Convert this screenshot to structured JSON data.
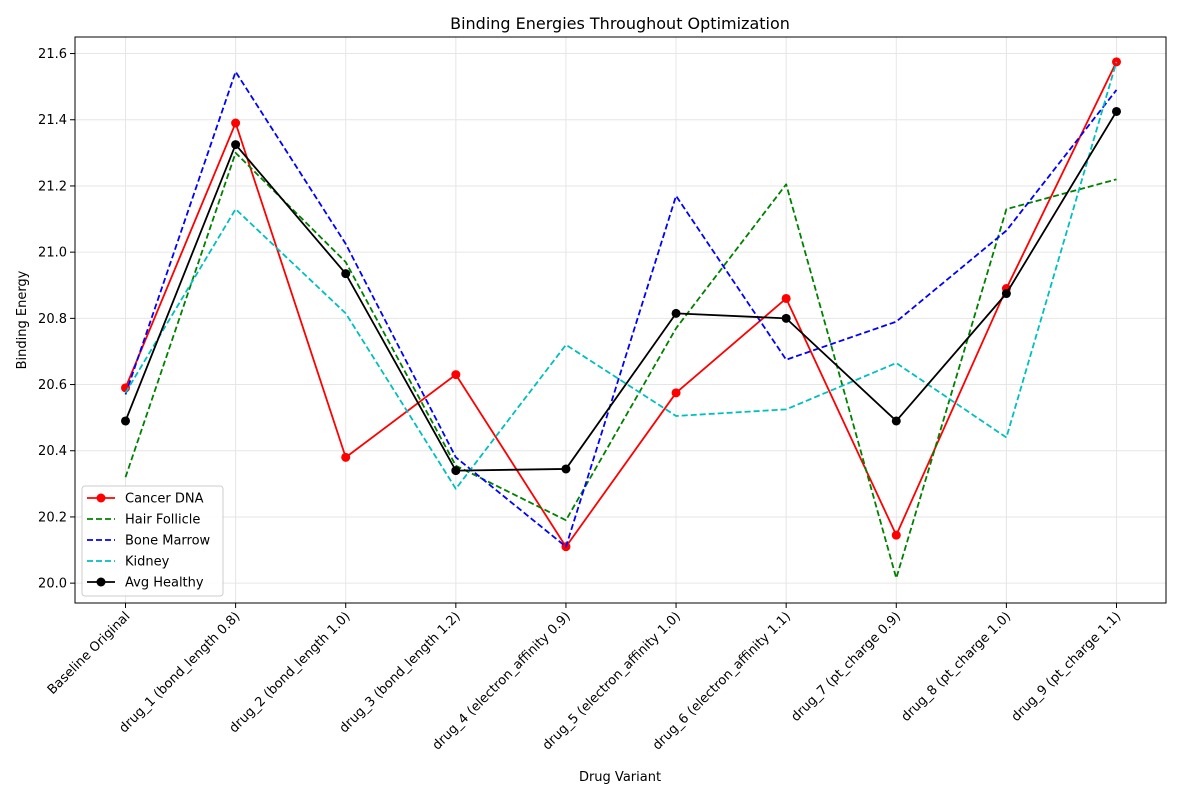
{
  "chart_data": {
    "type": "line",
    "title": "Binding Energies Throughout Optimization",
    "xlabel": "Drug Variant",
    "ylabel": "Binding Energy",
    "categories": [
      "Baseline Original",
      "drug_1 (bond_length 0.8)",
      "drug_2 (bond_length 1.0)",
      "drug_3 (bond_length 1.2)",
      "drug_4 (electron_affinity 0.9)",
      "drug_5 (electron_affinity 1.0)",
      "drug_6 (electron_affinity 1.1)",
      "drug_7 (pt_charge 0.9)",
      "drug_8 (pt_charge 1.0)",
      "drug_9 (pt_charge 1.1)"
    ],
    "ylim": [
      19.94,
      21.65
    ],
    "yticks": [
      20.0,
      20.2,
      20.4,
      20.6,
      20.8,
      21.0,
      21.2,
      21.4,
      21.6
    ],
    "ytick_labels": [
      "20.0",
      "20.2",
      "20.4",
      "20.6",
      "20.8",
      "21.0",
      "21.2",
      "21.4",
      "21.6"
    ],
    "grid": true,
    "legend_position": "lower-left",
    "series": [
      {
        "name": "Cancer DNA",
        "color": "#ff0000",
        "style": "solid",
        "marker": true,
        "values": [
          20.59,
          21.39,
          20.38,
          20.63,
          20.11,
          20.575,
          20.86,
          20.145,
          20.89,
          21.575
        ]
      },
      {
        "name": "Hair Follicle",
        "color": "#008000",
        "style": "dashed",
        "marker": false,
        "values": [
          20.32,
          21.3,
          20.97,
          20.355,
          20.19,
          20.77,
          21.205,
          20.015,
          21.13,
          21.22
        ]
      },
      {
        "name": "Bone Marrow",
        "color": "#0000ff",
        "style": "dashed",
        "marker": false,
        "values": [
          20.57,
          21.545,
          21.025,
          20.38,
          20.11,
          21.17,
          20.675,
          20.79,
          21.065,
          21.49
        ]
      },
      {
        "name": "Kidney",
        "color": "#00bfbf",
        "style": "dashed",
        "marker": false,
        "values": [
          20.575,
          21.13,
          20.815,
          20.285,
          20.72,
          20.505,
          20.525,
          20.665,
          20.44,
          21.575
        ]
      },
      {
        "name": "Avg Healthy",
        "color": "#000000",
        "style": "solid",
        "marker": true,
        "values": [
          20.49,
          21.325,
          20.935,
          20.34,
          20.345,
          20.815,
          20.8,
          20.49,
          20.875,
          21.425
        ]
      }
    ]
  }
}
